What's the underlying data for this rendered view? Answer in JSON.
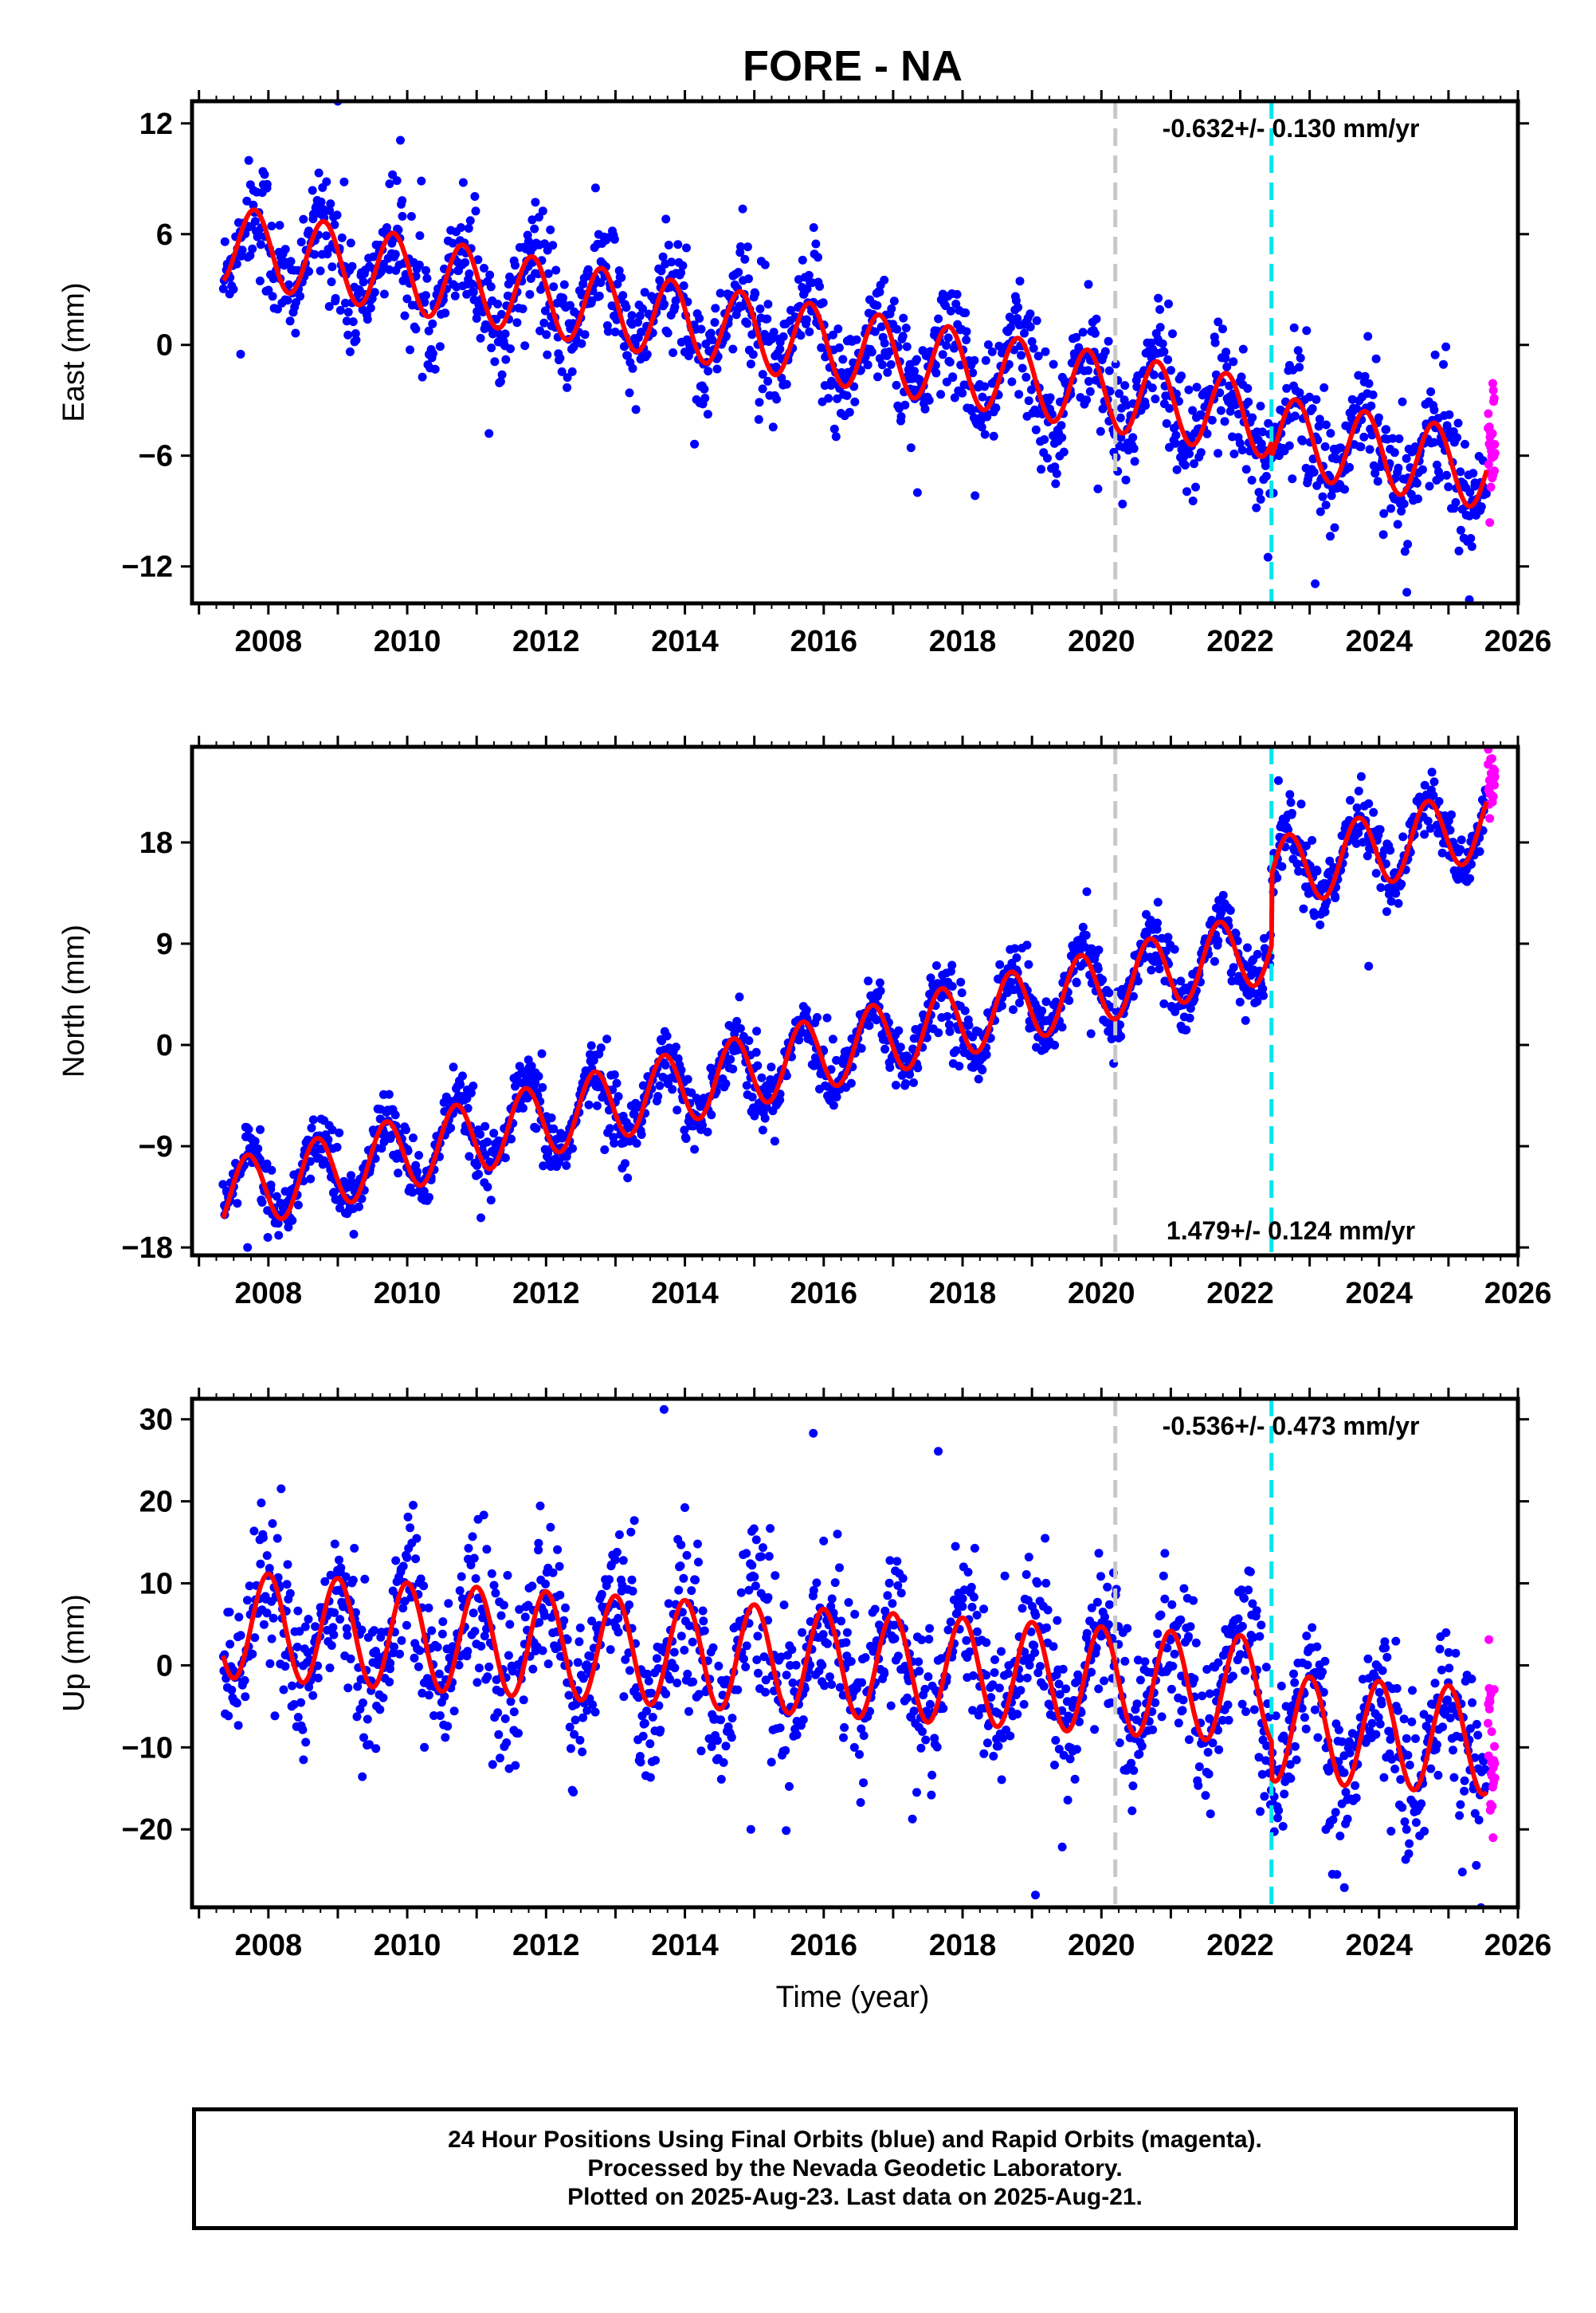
{
  "title": "FORE - NA",
  "xlabel": "Time (year)",
  "footer": {
    "line1": "24 Hour Positions Using Final Orbits (blue) and Rapid Orbits (magenta).",
    "line2": "Processed by the Nevada Geodetic Laboratory.",
    "line3": "Plotted on 2025-Aug-23. Last data on 2025-Aug-21."
  },
  "colors": {
    "final_orbits": "#0000ff",
    "rapid_orbits": "#ff00ff",
    "model_fit": "#ff0000",
    "reference_line": "#c8c8c8",
    "event_line": "#00e5ee"
  },
  "chart_data": [
    {
      "type": "scatter",
      "panel": "east",
      "ylabel": "East (mm)",
      "rate_label": "-0.632+/- 0.130 mm/yr",
      "xlim": [
        2006.9,
        2026.0
      ],
      "ylim": [
        -14,
        13.2
      ],
      "xticks": [
        "2008",
        "2010",
        "2012",
        "2014",
        "2016",
        "2018",
        "2020",
        "2022",
        "2024",
        "2026"
      ],
      "yticks": [
        "12",
        "6",
        "0",
        "-6",
        "-12"
      ],
      "ytick_values": [
        12,
        6,
        0,
        -6,
        -12
      ],
      "vlines": [
        {
          "x": 2020.2,
          "color": "#c8c8c8"
        },
        {
          "x": 2022.45,
          "color": "#00e5ee"
        }
      ],
      "model": {
        "start": 2007.35,
        "end": 2025.55,
        "offset": 5.5,
        "trend": -0.632,
        "amp": 2.1,
        "phase": 0.55,
        "steps": [
          {
            "x": 2022.45,
            "dy": -0.8
          }
        ]
      },
      "scatter": {
        "noise": 1.4,
        "rapid_from": 2025.55,
        "outliers": [
          [
            2009.0,
            13.2
          ],
          [
            2017.35,
            -8.0
          ],
          [
            2019.95,
            -7.8
          ],
          [
            2022.4,
            -11.5
          ],
          [
            2024.4,
            -13.4
          ],
          [
            2025.3,
            -13.8
          ],
          [
            2007.6,
            -0.5
          ]
        ]
      }
    },
    {
      "type": "scatter",
      "panel": "north",
      "ylabel": "North (mm)",
      "rate_label": "1.479+/- 0.124 mm/yr",
      "xlim": [
        2006.9,
        2026.0
      ],
      "ylim": [
        -18.7,
        26.5
      ],
      "xticks": [
        "2008",
        "2010",
        "2012",
        "2014",
        "2016",
        "2018",
        "2020",
        "2022",
        "2024",
        "2026"
      ],
      "yticks": [
        "18",
        "9",
        "0",
        "-9",
        "-18"
      ],
      "ytick_values": [
        18,
        9,
        0,
        -9,
        -18
      ],
      "vlines": [
        {
          "x": 2020.2,
          "color": "#c8c8c8"
        },
        {
          "x": 2022.45,
          "color": "#00e5ee"
        }
      ],
      "model": {
        "start": 2007.35,
        "end": 2025.55,
        "offset": -13.5,
        "trend": 1.479,
        "amp": 3.2,
        "phase": 0.45,
        "steps": [
          {
            "x": 2022.45,
            "dy": 6.3
          }
        ]
      },
      "scatter": {
        "noise": 1.3,
        "rapid_from": 2025.55,
        "outliers": [
          [
            2022.55,
            23.5
          ],
          [
            2023.85,
            7.0
          ],
          [
            2007.7,
            -18.0
          ],
          [
            2019.85,
            1.0
          ]
        ]
      }
    },
    {
      "type": "scatter",
      "panel": "up",
      "ylabel": "Up (mm)",
      "rate_label": "-0.536+/- 0.473 mm/yr",
      "xlim": [
        2006.9,
        2026.0
      ],
      "ylim": [
        -29.5,
        32.5
      ],
      "xticks": [
        "2008",
        "2010",
        "2012",
        "2014",
        "2016",
        "2018",
        "2020",
        "2022",
        "2024",
        "2026"
      ],
      "yticks": [
        "30",
        "20",
        "10",
        "0",
        "-10",
        "-20"
      ],
      "ytick_values": [
        30,
        20,
        10,
        0,
        -10,
        -20
      ],
      "vlines": [
        {
          "x": 2020.2,
          "color": "#c8c8c8"
        },
        {
          "x": 2022.45,
          "color": "#00e5ee"
        }
      ],
      "model": {
        "start": 2007.35,
        "end": 2025.55,
        "offset": 5.0,
        "trend": -0.536,
        "amp": 6.5,
        "phase": 0.75,
        "steps": [
          {
            "x": 2022.45,
            "dy": -4.5
          }
        ]
      },
      "scatter": {
        "noise": 4.2,
        "rapid_from": 2025.55,
        "outliers": [
          [
            2013.7,
            31.2
          ],
          [
            2015.85,
            28.3
          ],
          [
            2017.65,
            26.1
          ],
          [
            2019.05,
            -28.0
          ],
          [
            2023.5,
            -27.1
          ],
          [
            2014.95,
            -20.0
          ],
          [
            2025.2,
            -25.2
          ]
        ]
      }
    }
  ]
}
